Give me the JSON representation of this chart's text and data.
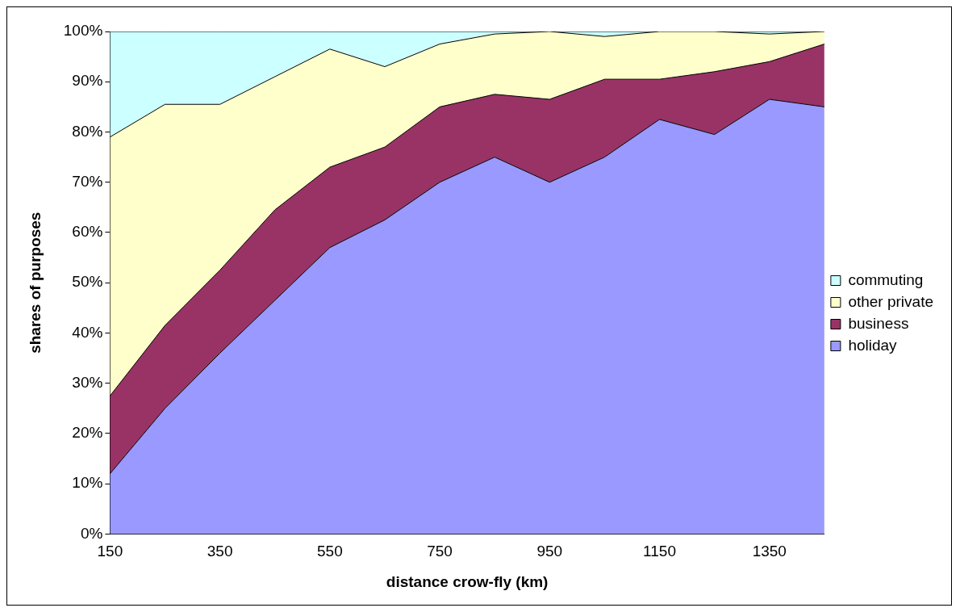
{
  "chart_data": {
    "type": "area",
    "stacked": true,
    "xlabel": "distance crow-fly (km)",
    "ylabel": "shares of purposes",
    "categories": [
      "150",
      null,
      "350",
      null,
      "550",
      null,
      "750",
      null,
      "950",
      null,
      "1150",
      null,
      "1350",
      null
    ],
    "ylim": [
      0,
      100
    ],
    "yticks": [
      {
        "value": 0,
        "label": "0%"
      },
      {
        "value": 10,
        "label": "10%"
      },
      {
        "value": 20,
        "label": "20%"
      },
      {
        "value": 30,
        "label": "30%"
      },
      {
        "value": 40,
        "label": "40%"
      },
      {
        "value": 50,
        "label": "50%"
      },
      {
        "value": 60,
        "label": "60%"
      },
      {
        "value": 70,
        "label": "70%"
      },
      {
        "value": 80,
        "label": "80%"
      },
      {
        "value": 90,
        "label": "90%"
      },
      {
        "value": 100,
        "label": "100%"
      }
    ],
    "grid": false,
    "legend": "right",
    "series": [
      {
        "name": "holiday",
        "color": "#9999ff",
        "values": [
          12,
          25,
          36,
          46.5,
          57,
          62.5,
          70,
          75,
          70,
          75,
          82.5,
          79.5,
          86.5,
          85
        ]
      },
      {
        "name": "business",
        "color": "#993366",
        "values": [
          15.5,
          16.5,
          16.5,
          18,
          16,
          14.5,
          15,
          12.5,
          16.5,
          15.5,
          8,
          12.5,
          7.5,
          12.5
        ]
      },
      {
        "name": "other private",
        "color": "#ffffcc",
        "values": [
          51.5,
          44,
          33,
          26.5,
          23.5,
          16,
          12.5,
          12,
          13.5,
          8.5,
          9.5,
          8,
          5.5,
          2.5
        ]
      },
      {
        "name": "commuting",
        "color": "#ccffff",
        "values": [
          21,
          14.5,
          14.5,
          9,
          3.5,
          7,
          2.5,
          0.5,
          0,
          1,
          0,
          0,
          0.5,
          0
        ]
      }
    ]
  }
}
